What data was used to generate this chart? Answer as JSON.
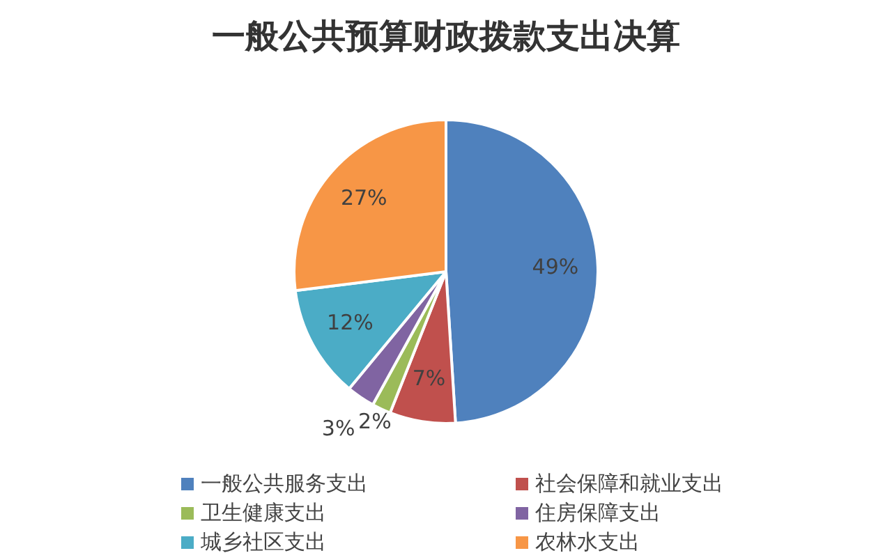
{
  "chart_data": {
    "type": "pie",
    "title": "一般公共预算财政拨款支出决算",
    "categories": [
      "一般公共服务支出",
      "社会保障和就业支出",
      "卫生健康支出",
      "住房保障支出",
      "城乡社区支出",
      "农林水支出"
    ],
    "values": [
      49,
      7,
      2,
      3,
      12,
      27
    ],
    "colors": [
      "#4f81bd",
      "#c0504d",
      "#9bbb59",
      "#8064a2",
      "#4bacc6",
      "#f79646"
    ],
    "value_labels": [
      "49%",
      "7%",
      "2%",
      "3%",
      "12%",
      "27%"
    ],
    "legend": "bottom"
  }
}
